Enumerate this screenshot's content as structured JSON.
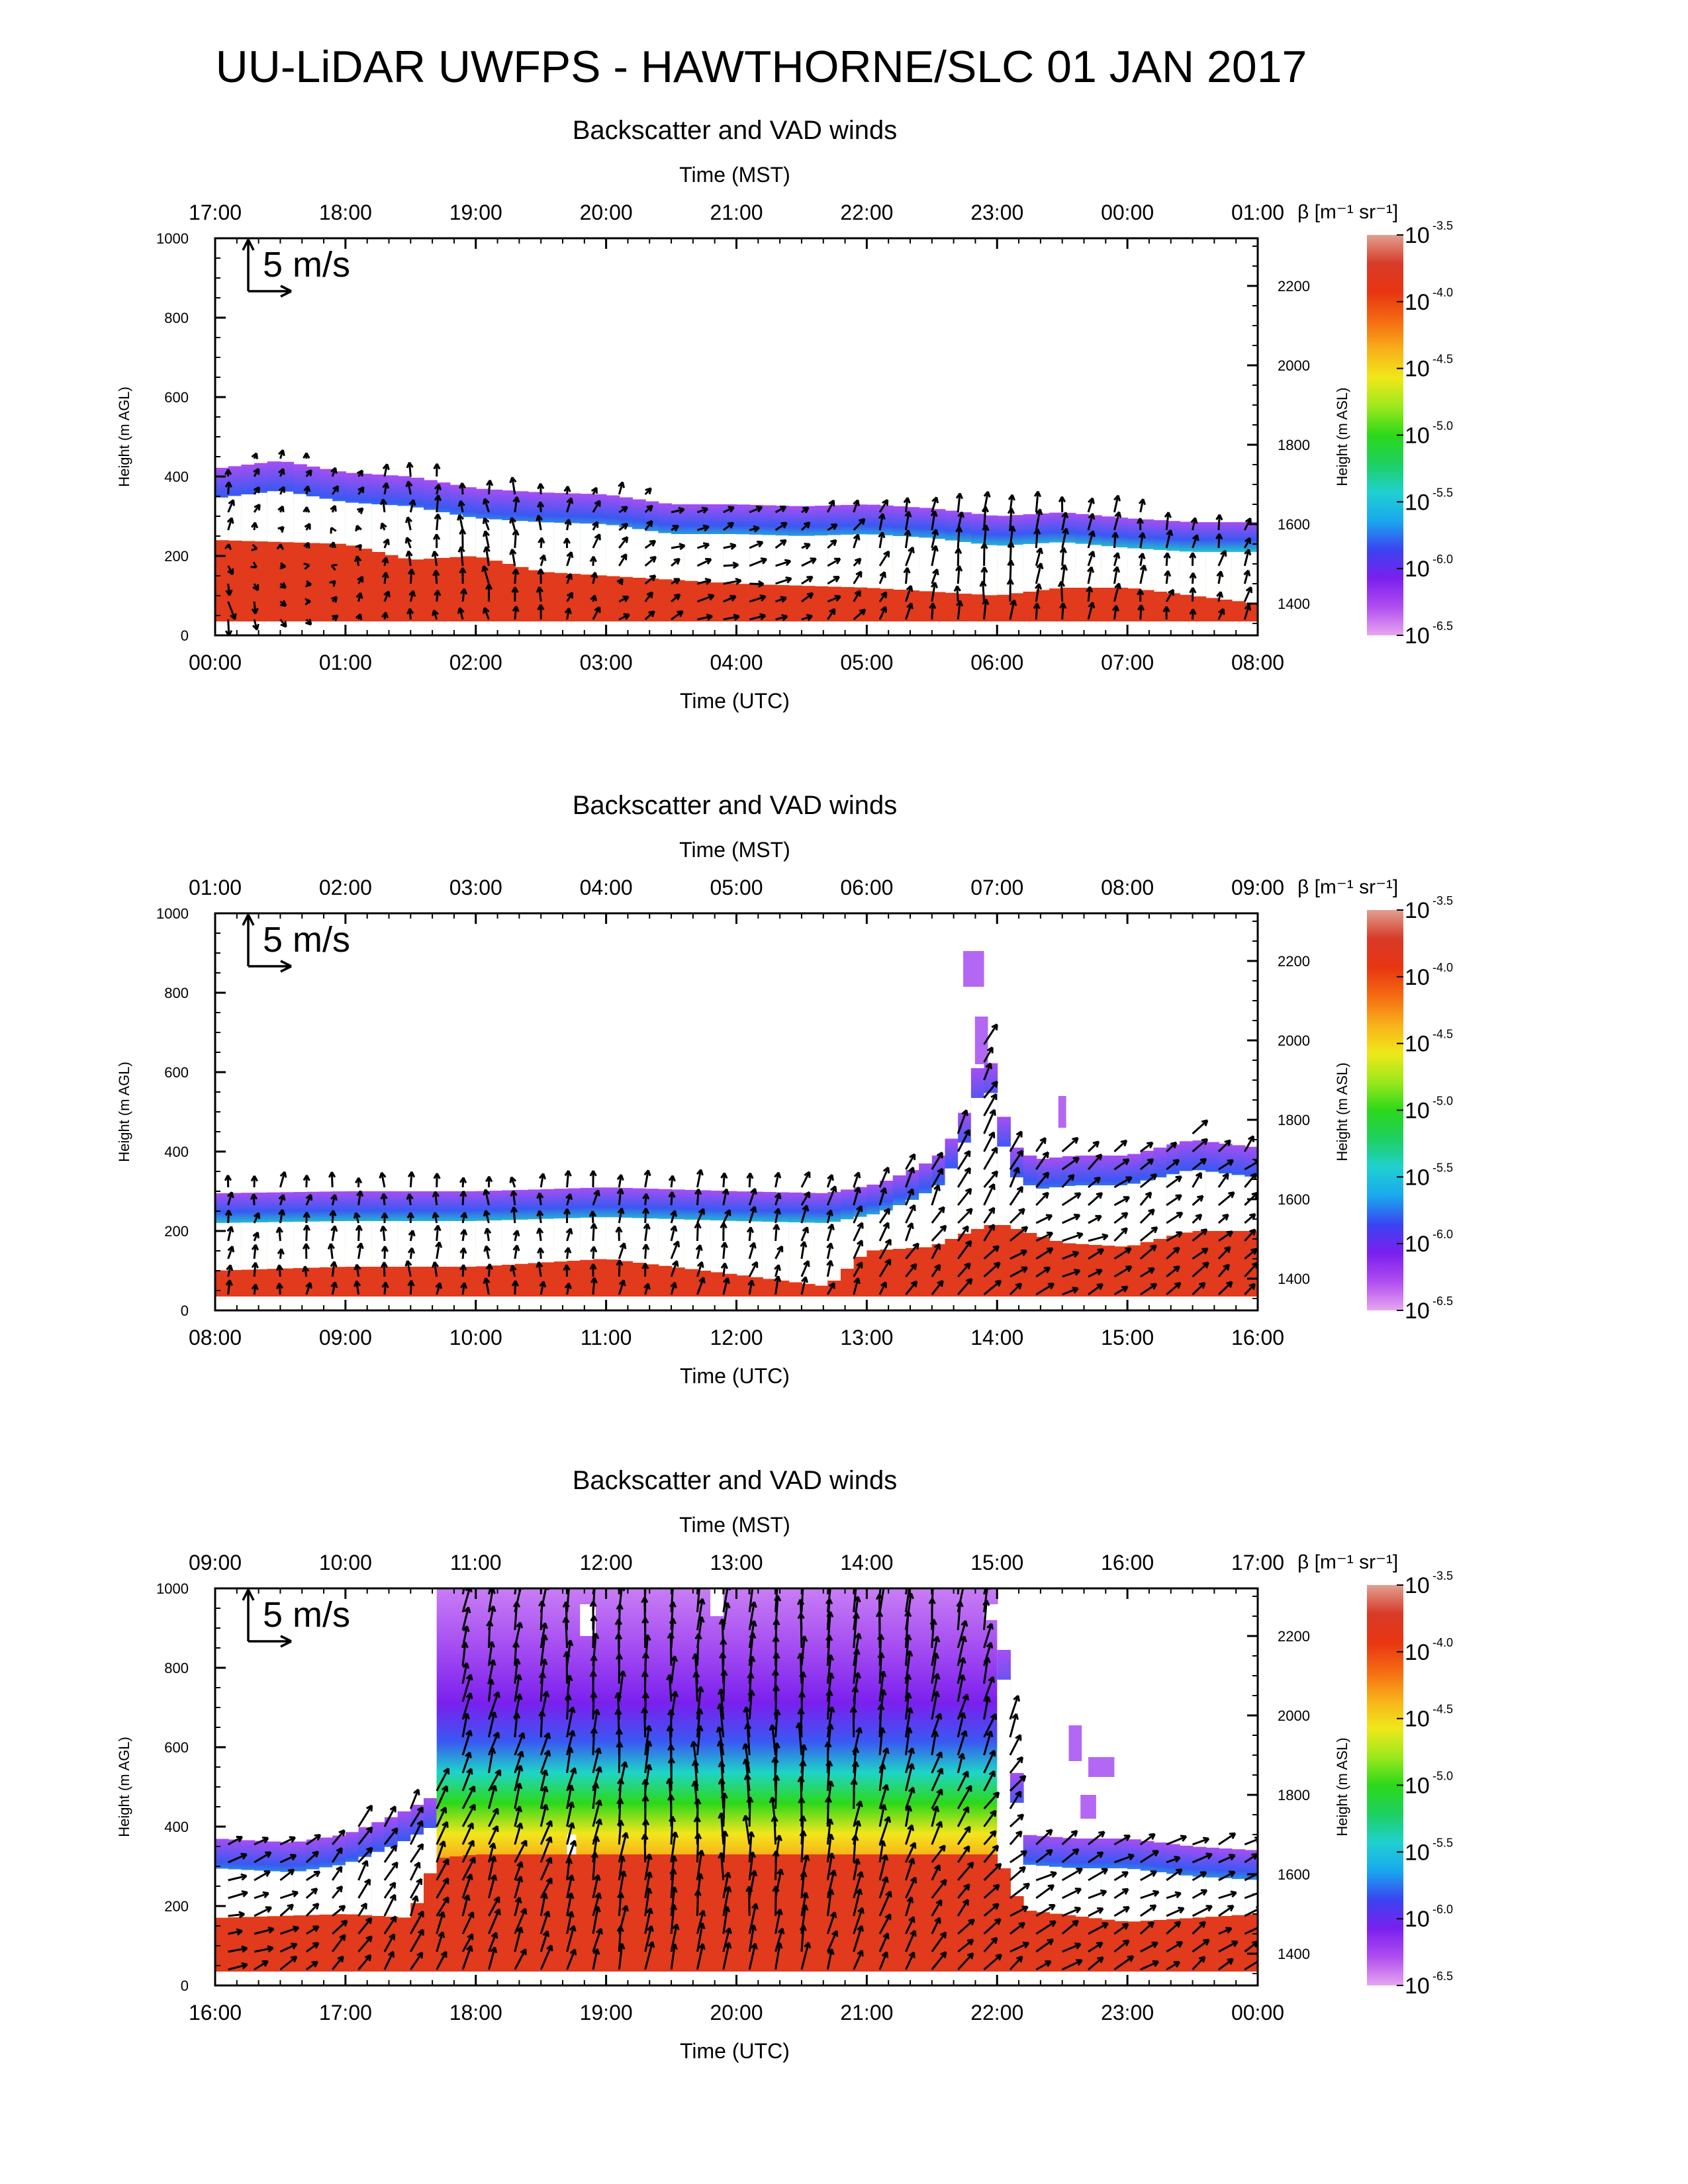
{
  "page": {
    "title": "UU-LiDAR UWFPS - HAWTHORNE/SLC 01 JAN 2017"
  },
  "colors": {
    "ramp": [
      "#e7a6f0",
      "#b04cf0",
      "#7a20ee",
      "#3a44f0",
      "#19a8ee",
      "#20d0d0",
      "#1ed060",
      "#2cd81a",
      "#9de81c",
      "#f0e81a",
      "#f8b01a",
      "#f56a12",
      "#e83512",
      "#d83a28",
      "#e0a090"
    ],
    "arrow": "#000000",
    "ground_red": "#e23a1c"
  },
  "common": {
    "ylabel": "Height (m AGL)",
    "y2label": "Height (m ASL)",
    "xlabel_bottom": "Time (UTC)",
    "xlabel_top": "Time (MST)",
    "yticks": [
      "0",
      "200",
      "400",
      "600",
      "800",
      "1000"
    ],
    "y2ticks": [
      "1400",
      "1600",
      "1800",
      "2000",
      "2200"
    ],
    "legend_arrow_label": "5 m/s",
    "colorbar_title": "β [m⁻¹ sr⁻¹]",
    "colorbar_base": "10",
    "colorbar_exponents": [
      "-6.5",
      "-6.0",
      "-5.5",
      "-5.0",
      "-4.5",
      "-4.0",
      "-3.5"
    ]
  },
  "chart_data": [
    {
      "type": "heatmap",
      "title": "Backscatter and VAD winds",
      "xlabel": "Time (UTC)",
      "x2label": "Time (MST)",
      "ylabel": "Height (m AGL)",
      "y2label": "Height (m ASL)",
      "ylim": [
        0,
        1000
      ],
      "y2lim": [
        1320,
        2320
      ],
      "x_hours_utc": [
        0,
        8
      ],
      "xticks_utc": [
        "00:00",
        "01:00",
        "02:00",
        "03:00",
        "04:00",
        "05:00",
        "06:00",
        "07:00",
        "08:00"
      ],
      "xticks_mst": [
        "17:00",
        "18:00",
        "19:00",
        "20:00",
        "21:00",
        "22:00",
        "23:00",
        "00:00",
        "01:00"
      ],
      "colorbar_range_log10": [
        -6.5,
        -3.5
      ],
      "aerosol_top_m": [
        [
          0,
          420
        ],
        [
          0.5,
          440
        ],
        [
          1.0,
          410
        ],
        [
          1.5,
          400
        ],
        [
          2.0,
          370
        ],
        [
          2.5,
          360
        ],
        [
          3.0,
          355
        ],
        [
          3.5,
          330
        ],
        [
          4.0,
          330
        ],
        [
          4.5,
          325
        ],
        [
          5.0,
          330
        ],
        [
          5.5,
          320
        ],
        [
          6.0,
          300
        ],
        [
          6.5,
          310
        ],
        [
          7.0,
          295
        ],
        [
          7.5,
          285
        ],
        [
          8.0,
          285
        ]
      ],
      "high_backscatter_top_m": [
        [
          0,
          240
        ],
        [
          1.0,
          230
        ],
        [
          1.5,
          190
        ],
        [
          2.0,
          200
        ],
        [
          2.5,
          160
        ],
        [
          3.0,
          150
        ],
        [
          3.5,
          140
        ],
        [
          4.0,
          130
        ],
        [
          5.0,
          120
        ],
        [
          6.0,
          100
        ],
        [
          6.5,
          120
        ],
        [
          7.0,
          120
        ],
        [
          8.0,
          80
        ]
      ],
      "cloud_patches": [],
      "turbulent_layer": null,
      "wind_samples_m_s": [
        [
          0,
          100,
          0.8,
          -3.0
        ],
        [
          0,
          300,
          0.4,
          2.5
        ],
        [
          2,
          200,
          -0.5,
          2.8
        ],
        [
          4,
          100,
          2.5,
          0.4
        ],
        [
          6,
          200,
          0.2,
          3.5
        ],
        [
          8,
          100,
          0.6,
          2.2
        ]
      ]
    },
    {
      "type": "heatmap",
      "title": "Backscatter and VAD winds",
      "xlabel": "Time (UTC)",
      "x2label": "Time (MST)",
      "ylabel": "Height (m AGL)",
      "y2label": "Height (m ASL)",
      "ylim": [
        0,
        1000
      ],
      "y2lim": [
        1320,
        2320
      ],
      "x_hours_utc": [
        8,
        16
      ],
      "xticks_utc": [
        "08:00",
        "09:00",
        "10:00",
        "11:00",
        "12:00",
        "13:00",
        "14:00",
        "15:00",
        "16:00"
      ],
      "xticks_mst": [
        "01:00",
        "02:00",
        "03:00",
        "04:00",
        "05:00",
        "06:00",
        "07:00",
        "08:00",
        "09:00"
      ],
      "colorbar_range_log10": [
        -6.5,
        -3.5
      ],
      "aerosol_top_m": [
        [
          8.0,
          295
        ],
        [
          9.0,
          300
        ],
        [
          10.0,
          300
        ],
        [
          11.0,
          310
        ],
        [
          12.0,
          300
        ],
        [
          12.7,
          295
        ],
        [
          13.1,
          320
        ],
        [
          13.4,
          360
        ],
        [
          13.6,
          400
        ],
        [
          13.8,
          530
        ],
        [
          13.9,
          690
        ],
        [
          14.1,
          420
        ],
        [
          14.3,
          380
        ],
        [
          14.6,
          390
        ],
        [
          15.0,
          390
        ],
        [
          15.5,
          430
        ],
        [
          16.0,
          410
        ]
      ],
      "high_backscatter_top_m": [
        [
          8.0,
          100
        ],
        [
          9.0,
          110
        ],
        [
          10.0,
          110
        ],
        [
          11.0,
          130
        ],
        [
          11.5,
          110
        ],
        [
          12.0,
          90
        ],
        [
          12.7,
          60
        ],
        [
          13.0,
          150
        ],
        [
          13.5,
          160
        ],
        [
          13.8,
          200
        ],
        [
          14.0,
          220
        ],
        [
          14.5,
          170
        ],
        [
          15.0,
          160
        ],
        [
          15.5,
          200
        ],
        [
          16.0,
          200
        ]
      ],
      "cloud_patches": [
        {
          "t": 13.82,
          "z": 860,
          "w": 0.16,
          "h": 90
        },
        {
          "t": 13.88,
          "z": 680,
          "w": 0.1,
          "h": 120
        },
        {
          "t": 14.5,
          "z": 500,
          "w": 0.06,
          "h": 80
        }
      ],
      "turbulent_layer": null,
      "wind_samples_m_s": [
        [
          8,
          200,
          0.3,
          2.0
        ],
        [
          10,
          300,
          -0.3,
          2.2
        ],
        [
          12,
          200,
          0.6,
          2.5
        ],
        [
          13.8,
          400,
          1.5,
          3.8
        ],
        [
          14.5,
          150,
          3.0,
          1.2
        ],
        [
          15.5,
          300,
          2.0,
          2.0
        ]
      ]
    },
    {
      "type": "heatmap",
      "title": "Backscatter and VAD winds",
      "xlabel": "Time (UTC)",
      "x2label": "Time (MST)",
      "ylabel": "Height (m AGL)",
      "y2label": "Height (m ASL)",
      "ylim": [
        0,
        1000
      ],
      "y2lim": [
        1320,
        2320
      ],
      "x_hours_utc": [
        16,
        24
      ],
      "xticks_utc": [
        "16:00",
        "17:00",
        "18:00",
        "19:00",
        "20:00",
        "21:00",
        "22:00",
        "23:00",
        "00:00"
      ],
      "xticks_mst": [
        "09:00",
        "10:00",
        "11:00",
        "12:00",
        "13:00",
        "14:00",
        "15:00",
        "16:00",
        "17:00"
      ],
      "colorbar_range_log10": [
        -6.5,
        -3.5
      ],
      "aerosol_top_m": [
        [
          16.0,
          370
        ],
        [
          16.6,
          360
        ],
        [
          17.0,
          380
        ],
        [
          17.4,
          430
        ],
        [
          17.7,
          480
        ],
        [
          18.0,
          1000
        ],
        [
          22.0,
          1000
        ],
        [
          22.2,
          380
        ],
        [
          22.6,
          370
        ],
        [
          23.0,
          370
        ],
        [
          23.5,
          350
        ],
        [
          24.0,
          340
        ]
      ],
      "high_backscatter_top_m": [
        [
          16.0,
          170
        ],
        [
          17.0,
          180
        ],
        [
          17.5,
          170
        ],
        [
          17.7,
          320
        ],
        [
          18.0,
          330
        ],
        [
          22.0,
          330
        ],
        [
          22.2,
          190
        ],
        [
          23.0,
          160
        ],
        [
          24.0,
          180
        ]
      ],
      "cloud_patches": [
        {
          "t": 22.6,
          "z": 610,
          "w": 0.1,
          "h": 90
        },
        {
          "t": 22.8,
          "z": 550,
          "w": 0.2,
          "h": 50
        },
        {
          "t": 22.7,
          "z": 450,
          "w": 0.12,
          "h": 60
        }
      ],
      "turbulent_layer": {
        "t_start": 17.7,
        "t_end": 22.0,
        "top_m": 1000
      },
      "wind_samples_m_s": [
        [
          16,
          200,
          3.0,
          0.8
        ],
        [
          18,
          400,
          1.5,
          3.5
        ],
        [
          19,
          800,
          0.2,
          5.0
        ],
        [
          20,
          500,
          -0.5,
          5.5
        ],
        [
          21,
          900,
          0.3,
          6.0
        ],
        [
          22.5,
          200,
          3.0,
          1.5
        ],
        [
          23.5,
          300,
          2.8,
          1.2
        ]
      ]
    }
  ]
}
